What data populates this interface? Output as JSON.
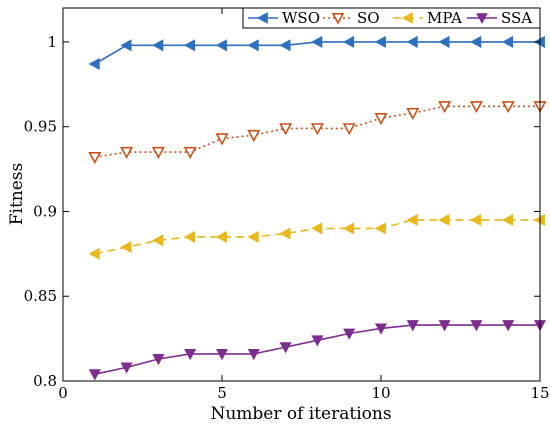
{
  "chart_data": {
    "type": "line",
    "title": "",
    "xlabel": "Number of iterations",
    "ylabel": "Fitness",
    "xlim": [
      0,
      15
    ],
    "ylim": [
      0.8,
      1.02
    ],
    "x_ticks": [
      "0",
      "5",
      "10",
      "15"
    ],
    "y_ticks": [
      "0.8",
      "0.85",
      "0.9",
      "0.95",
      "1"
    ],
    "grid": false,
    "legend_position": "top, in one row",
    "x": [
      1,
      2,
      3,
      4,
      5,
      6,
      7,
      8,
      9,
      10,
      11,
      12,
      13,
      14,
      15
    ],
    "series": [
      {
        "name": "WSO",
        "color": "#2e6fbf",
        "line_style": "solid",
        "marker": "triangle-left",
        "values": [
          0.987,
          0.998,
          0.998,
          0.998,
          0.998,
          0.998,
          0.998,
          1.0,
          1.0,
          1.0,
          1.0,
          1.0,
          1.0,
          1.0,
          1.0
        ]
      },
      {
        "name": "SO",
        "color": "#c9531a",
        "line_style": "dotted",
        "marker": "triangle-down-open",
        "values": [
          0.932,
          0.935,
          0.935,
          0.935,
          0.943,
          0.945,
          0.949,
          0.949,
          0.949,
          0.955,
          0.958,
          0.962,
          0.962,
          0.962,
          0.962
        ]
      },
      {
        "name": "MPA",
        "color": "#e8b81c",
        "line_style": "dashed",
        "marker": "triangle-left",
        "values": [
          0.875,
          0.879,
          0.883,
          0.885,
          0.885,
          0.885,
          0.887,
          0.89,
          0.89,
          0.89,
          0.895,
          0.895,
          0.895,
          0.895,
          0.895
        ]
      },
      {
        "name": "SSA",
        "color": "#7d2d8e",
        "line_style": "solid",
        "marker": "triangle-down",
        "values": [
          0.804,
          0.808,
          0.813,
          0.816,
          0.816,
          0.816,
          0.82,
          0.824,
          0.828,
          0.831,
          0.833,
          0.833,
          0.833,
          0.833,
          0.833
        ]
      }
    ]
  }
}
